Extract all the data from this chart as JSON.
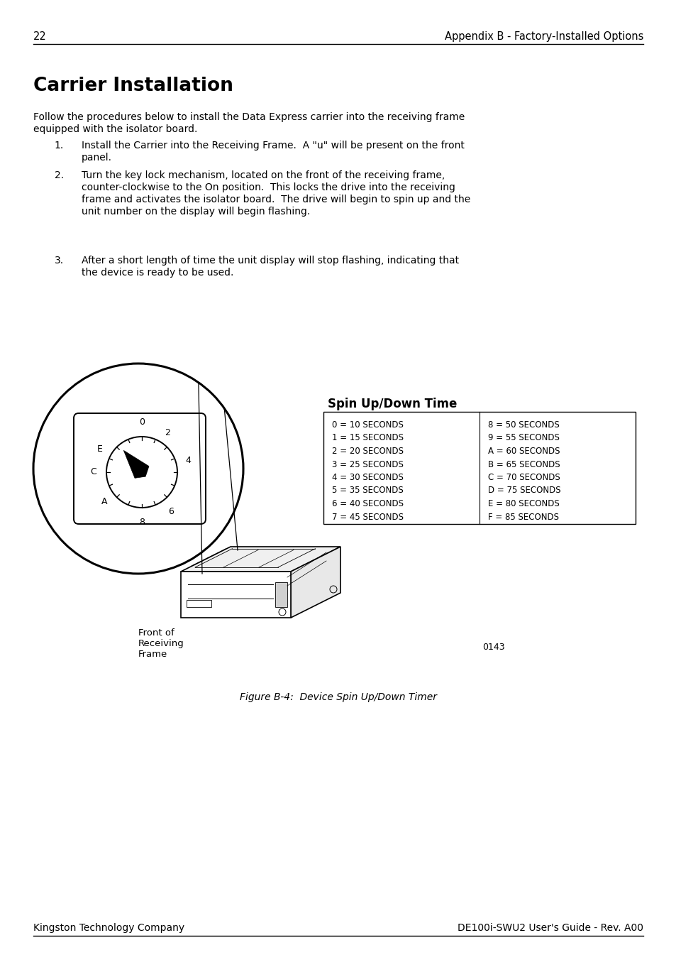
{
  "page_number": "22",
  "header_right": "Appendix B - Factory-Installed Options",
  "section_title": "Carrier Installation",
  "intro_text": "Follow the procedures below to install the Data Express carrier into the receiving frame\nequipped with the isolator board.",
  "steps": [
    "Install the Carrier into the Receiving Frame.  A \"u\" will be present on the front\npanel.",
    "Turn the key lock mechanism, located on the front of the receiving frame,\ncounter-clockwise to the On position.  This locks the drive into the receiving\nframe and activates the isolator board.  The drive will begin to spin up and the\nunit number on the display will begin flashing.",
    "After a short length of time the unit display will stop flashing, indicating that\nthe device is ready to be used."
  ],
  "spin_up_title": "Spin Up/Down Time",
  "spin_up_left": [
    "0 = 10 SECONDS",
    "1 = 15 SECONDS",
    "2 = 20 SECONDS",
    "3 = 25 SECONDS",
    "4 = 30 SECONDS",
    "5 = 35 SECONDS",
    "6 = 40 SECONDS",
    "7 = 45 SECONDS"
  ],
  "spin_up_right": [
    "8 = 50 SECONDS",
    "9 = 55 SECONDS",
    "A = 60 SECONDS",
    "B = 65 SECONDS",
    "C = 70 SECONDS",
    "D = 75 SECONDS",
    "E = 80 SECONDS",
    "F = 85 SECONDS"
  ],
  "front_label_line1": "Front of",
  "front_label_line2": "Receiving",
  "front_label_line3": "Frame",
  "figure_caption": "Figure B-4:  Device Spin Up/Down Timer",
  "ref_number": "0143",
  "footer_left": "Kingston Technology Company",
  "footer_right": "DE100i-SWU2 User's Guide - Rev. A00",
  "bg_color": "#ffffff",
  "text_color": "#000000"
}
